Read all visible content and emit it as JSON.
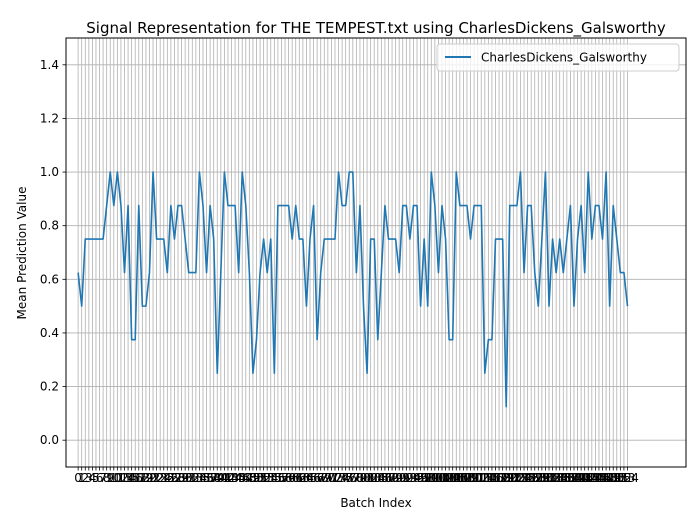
{
  "chart_data": {
    "type": "line",
    "title": "Signal Representation for THE TEMPEST.txt using CharlesDickens_Galsworthy",
    "xlabel": "Batch Index",
    "ylabel": "Mean Prediction Value",
    "ylim": [
      -0.1,
      1.5
    ],
    "xlim": [
      -3.4,
      170.4
    ],
    "yticks": [
      0.0,
      0.2,
      0.4,
      0.6,
      0.8,
      1.0,
      1.2,
      1.4
    ],
    "ytick_labels": [
      "0.0",
      "0.2",
      "0.4",
      "0.6",
      "0.8",
      "1.0",
      "1.2",
      "1.4"
    ],
    "grid": true,
    "legend_position": "top-right",
    "series": [
      {
        "name": "CharlesDickens_Galsworthy",
        "color": "#1f77b4",
        "values": [
          0.625,
          0.5,
          0.75,
          0.75,
          0.75,
          0.75,
          0.75,
          0.75,
          0.875,
          1.0,
          0.875,
          1.0,
          0.875,
          0.625,
          0.875,
          0.375,
          0.375,
          0.875,
          0.5,
          0.5,
          0.625,
          1.0,
          0.75,
          0.75,
          0.75,
          0.625,
          0.875,
          0.75,
          0.875,
          0.875,
          0.75,
          0.625,
          0.625,
          0.625,
          1.0,
          0.875,
          0.625,
          0.875,
          0.75,
          0.25,
          0.625,
          1.0,
          0.875,
          0.875,
          0.875,
          0.625,
          1.0,
          0.875,
          0.625,
          0.25,
          0.375,
          0.625,
          0.75,
          0.625,
          0.75,
          0.25,
          0.875,
          0.875,
          0.875,
          0.875,
          0.75,
          0.875,
          0.75,
          0.75,
          0.5,
          0.75,
          0.875,
          0.375,
          0.625,
          0.75,
          0.75,
          0.75,
          0.75,
          1.0,
          0.875,
          0.875,
          1.0,
          1.0,
          0.625,
          0.875,
          0.5,
          0.25,
          0.75,
          0.75,
          0.375,
          0.625,
          0.875,
          0.75,
          0.75,
          0.75,
          0.625,
          0.875,
          0.875,
          0.75,
          0.875,
          0.875,
          0.5,
          0.75,
          0.5,
          1.0,
          0.875,
          0.625,
          0.875,
          0.75,
          0.375,
          0.375,
          1.0,
          0.875,
          0.875,
          0.875,
          0.75,
          0.875,
          0.875,
          0.875,
          0.25,
          0.375,
          0.375,
          0.75,
          0.75,
          0.75,
          0.125,
          0.875,
          0.875,
          0.875,
          1.0,
          0.625,
          0.875,
          0.875,
          0.625,
          0.5,
          0.75,
          1.0,
          0.5,
          0.75,
          0.625,
          0.75,
          0.625,
          0.75,
          0.875,
          0.5,
          0.75,
          0.875,
          0.625,
          1.0,
          0.75,
          0.875,
          0.875,
          0.75,
          1.0,
          0.5,
          0.875,
          0.75,
          0.625,
          0.625,
          0.5
        ]
      }
    ]
  }
}
